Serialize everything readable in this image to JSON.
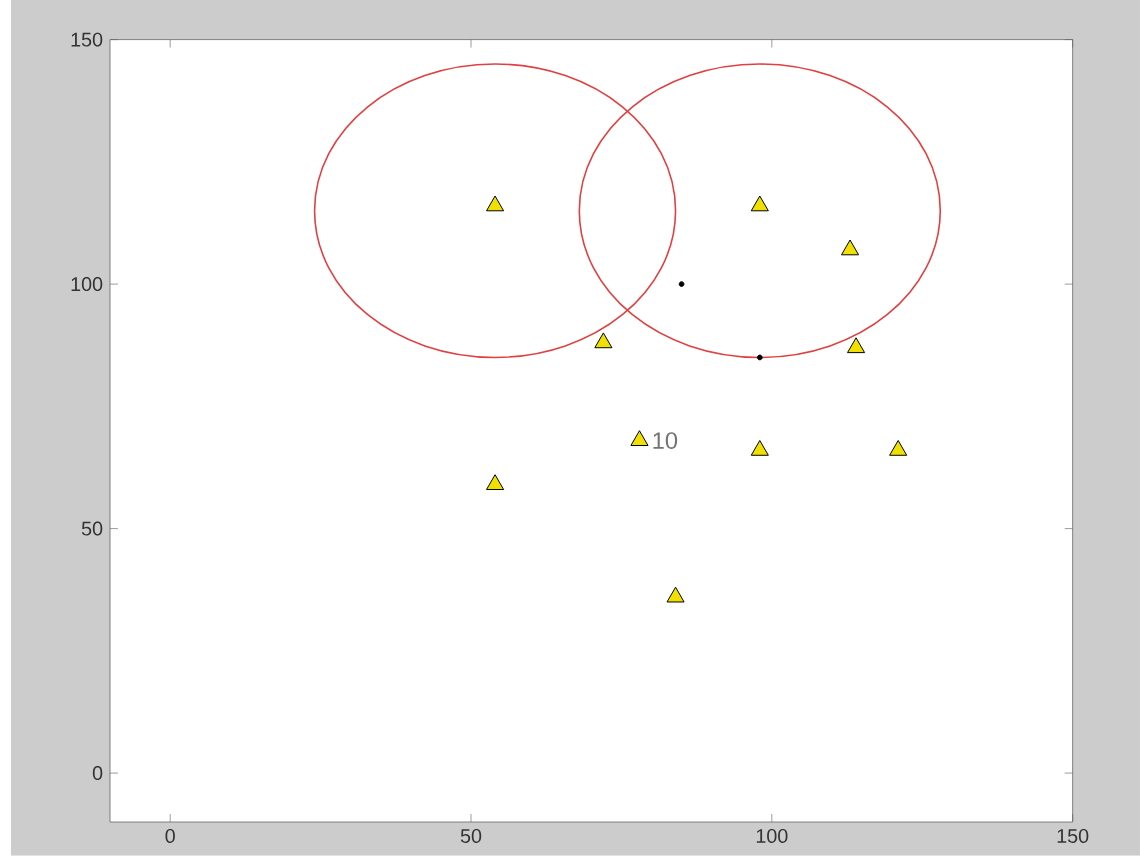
{
  "chart_data": {
    "type": "scatter",
    "xlim": [
      -10,
      150
    ],
    "ylim": [
      -10,
      150
    ],
    "xticks": [
      0,
      50,
      100,
      150
    ],
    "yticks": [
      0,
      50,
      100,
      150
    ],
    "series": [
      {
        "color": "#000000",
        "marker": "circle",
        "x": [
          85,
          98
        ],
        "values": [
          100,
          85
        ]
      },
      {
        "color": "#f0e000",
        "marker": "triangle",
        "x": [
          54,
          98,
          113,
          72,
          114,
          78,
          98,
          121,
          54,
          84
        ],
        "values": [
          116,
          116,
          107,
          88,
          87,
          68,
          66,
          66,
          59,
          36
        ]
      }
    ],
    "annotations": [
      {
        "text": "10",
        "x": 78,
        "y": 68
      }
    ]
  }
}
